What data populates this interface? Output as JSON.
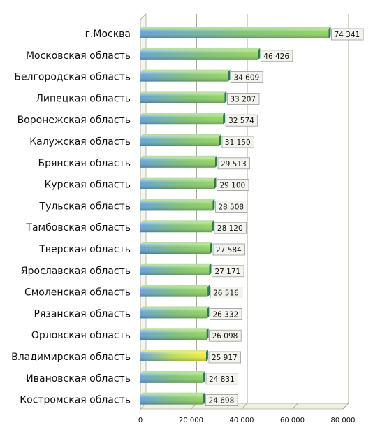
{
  "chart_data": {
    "type": "bar",
    "orientation": "horizontal",
    "title": "",
    "xlabel": "",
    "ylabel": "",
    "categories": [
      "г.Москва",
      "Московская область",
      "Белгородская область",
      "Липецкая область",
      "Воронежская область",
      "Калужская область",
      "Брянская область",
      "Курская область",
      "Тульская область",
      "Тамбовская область",
      "Тверская область",
      "Ярославская область",
      "Смоленская область",
      "Рязанская область",
      "Орловская область",
      "Владимирская область",
      "Ивановская область",
      "Костромская область"
    ],
    "values": [
      74341,
      46426,
      34609,
      33207,
      32574,
      31150,
      29513,
      29100,
      28508,
      28120,
      27584,
      27171,
      26516,
      26332,
      26098,
      25917,
      24831,
      24698
    ],
    "value_labels": [
      "74 341",
      "46 426",
      "34 609",
      "33 207",
      "32 574",
      "31 150",
      "29 513",
      "29 100",
      "28 508",
      "28 120",
      "27 584",
      "27 171",
      "26 516",
      "26 332",
      "26 098",
      "25 917",
      "24 831",
      "24 698"
    ],
    "xlim": [
      0,
      80000
    ],
    "x_ticks": [
      0,
      20000,
      40000,
      60000,
      80000
    ],
    "x_tick_labels": [
      "0",
      "20 000",
      "40 000",
      "60 000",
      "80 000"
    ],
    "grid": true,
    "legend": "none",
    "highlighted_category": "Владимирская область",
    "colors": {
      "bar_left": "#5f9fd9",
      "bar_right": "#8fd35a",
      "highlight_right": "#f2ee2a",
      "bar_end": "#2f7a52",
      "grid": "#a8ae8c",
      "label_box": "#f3f3ee"
    }
  }
}
